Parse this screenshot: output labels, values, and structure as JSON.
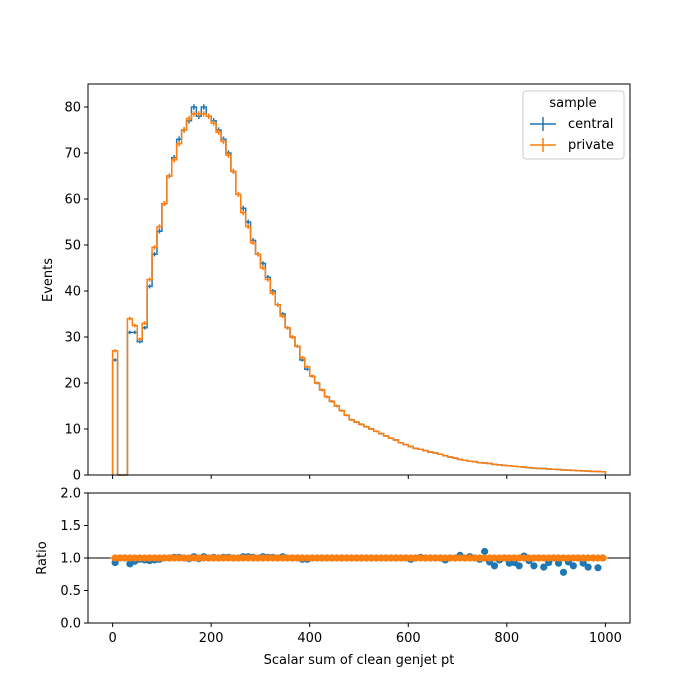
{
  "chart_data": [
    {
      "type": "histogram",
      "ylabel": "Events",
      "xlim": [
        -50,
        1050
      ],
      "ylim": [
        0,
        85
      ],
      "yticks": [
        0,
        10,
        20,
        30,
        40,
        50,
        60,
        70,
        80
      ],
      "legend": {
        "title": "sample",
        "placement": "top-right",
        "entries": [
          "central",
          "private"
        ]
      },
      "bin_edges": [
        0,
        10,
        20,
        30,
        40,
        50,
        60,
        70,
        80,
        90,
        100,
        110,
        120,
        130,
        140,
        150,
        160,
        170,
        180,
        190,
        200,
        210,
        220,
        230,
        240,
        250,
        260,
        270,
        280,
        290,
        300,
        310,
        320,
        330,
        340,
        350,
        360,
        370,
        380,
        390,
        400,
        410,
        420,
        430,
        440,
        450,
        460,
        470,
        480,
        490,
        500,
        510,
        520,
        530,
        540,
        550,
        560,
        570,
        580,
        590,
        600,
        610,
        620,
        630,
        640,
        650,
        660,
        670,
        680,
        690,
        700,
        710,
        720,
        730,
        740,
        750,
        760,
        770,
        780,
        790,
        800,
        810,
        820,
        830,
        840,
        850,
        860,
        870,
        880,
        890,
        900,
        910,
        920,
        930,
        940,
        950,
        960,
        970,
        980,
        990,
        1000
      ],
      "series": [
        {
          "name": "central",
          "color": "#1f77b4",
          "values": [
            25,
            0,
            0,
            31,
            31,
            29,
            32,
            41,
            48,
            53,
            59,
            65,
            69,
            73,
            75,
            77,
            80,
            78,
            80,
            78,
            77,
            75,
            73,
            70,
            66,
            61,
            58,
            55,
            51,
            48,
            46,
            43,
            40,
            37,
            35,
            32,
            30,
            28,
            25,
            23,
            21.5,
            20,
            18.5,
            17,
            16,
            15,
            14,
            13,
            12,
            11.5,
            11,
            10.5,
            10,
            9.5,
            9,
            8.5,
            8,
            7.6,
            7,
            6.6,
            6.2,
            5.8,
            5.6,
            5.3,
            5,
            4.8,
            4.5,
            4.2,
            3.9,
            3.7,
            3.4,
            3.2,
            3.0,
            2.9,
            2.7,
            2.6,
            2.5,
            2.3,
            2.2,
            2.1,
            2.0,
            1.9,
            1.8,
            1.7,
            1.6,
            1.5,
            1.45,
            1.4,
            1.3,
            1.25,
            1.2,
            1.1,
            1.05,
            1.0,
            0.95,
            0.9,
            0.85,
            0.8,
            0.75,
            0.7
          ]
        },
        {
          "name": "private",
          "color": "#ff7f0e",
          "values": [
            27,
            0,
            0,
            34,
            32.5,
            29.5,
            33,
            42.5,
            49.5,
            54,
            59,
            65,
            68.5,
            72,
            75,
            77.5,
            78.5,
            78.5,
            78.5,
            78,
            76.5,
            74.5,
            72.5,
            69.5,
            66,
            61,
            57,
            54,
            50.5,
            48,
            45,
            42.5,
            39.5,
            37,
            34.5,
            32,
            30,
            28,
            25.5,
            23.5,
            21.5,
            20,
            18.5,
            17,
            16,
            15,
            14,
            13,
            12,
            11.5,
            11,
            10.5,
            10,
            9.5,
            9,
            8.5,
            8,
            7.6,
            7,
            6.6,
            6.2,
            5.8,
            5.6,
            5.3,
            5,
            4.8,
            4.5,
            4.2,
            3.9,
            3.7,
            3.4,
            3.2,
            3.0,
            2.9,
            2.7,
            2.6,
            2.5,
            2.3,
            2.2,
            2.1,
            2.0,
            1.9,
            1.8,
            1.7,
            1.6,
            1.5,
            1.45,
            1.4,
            1.3,
            1.25,
            1.2,
            1.1,
            1.05,
            1.0,
            0.95,
            0.9,
            0.85,
            0.8,
            0.75,
            0.7
          ]
        }
      ]
    },
    {
      "type": "scatter",
      "xlabel": "Scalar sum of clean genjet pt",
      "ylabel": "Ratio",
      "xlim": [
        -50,
        1050
      ],
      "ylim": [
        0,
        2.0
      ],
      "xticks": [
        0,
        200,
        400,
        600,
        800,
        1000
      ],
      "yticks": [
        "0.0",
        "0.5",
        "1.0",
        "1.5",
        "2.0"
      ],
      "reference_line": 1.0,
      "x": [
        5,
        15,
        25,
        35,
        45,
        55,
        65,
        75,
        85,
        95,
        105,
        115,
        125,
        135,
        145,
        155,
        165,
        175,
        185,
        195,
        205,
        215,
        225,
        235,
        245,
        255,
        265,
        275,
        285,
        295,
        305,
        315,
        325,
        335,
        345,
        355,
        365,
        375,
        385,
        395,
        405,
        415,
        425,
        435,
        445,
        455,
        465,
        475,
        485,
        495,
        505,
        515,
        525,
        535,
        545,
        555,
        565,
        575,
        585,
        595,
        605,
        615,
        625,
        635,
        645,
        655,
        665,
        675,
        685,
        695,
        705,
        715,
        725,
        735,
        745,
        755,
        765,
        775,
        785,
        795,
        805,
        815,
        825,
        835,
        845,
        855,
        865,
        875,
        885,
        895,
        905,
        915,
        925,
        935,
        945,
        955,
        965,
        975,
        985,
        995
      ],
      "series": [
        {
          "name": "central",
          "color": "#1f77b4",
          "values": [
            0.93,
            1.0,
            1.0,
            0.91,
            0.95,
            0.98,
            0.97,
            0.96,
            0.97,
            0.98,
            1.0,
            1.0,
            1.01,
            1.01,
            1.0,
            0.99,
            1.02,
            0.99,
            1.02,
            1.0,
            1.01,
            1.0,
            1.01,
            1.01,
            1.0,
            1.0,
            1.02,
            1.02,
            1.01,
            1.0,
            1.02,
            1.01,
            1.01,
            1.0,
            1.02,
            1.0,
            1.0,
            1.0,
            0.98,
            0.98,
            1.0,
            1.0,
            1.0,
            1.0,
            1.0,
            1.0,
            1.0,
            1.0,
            1.0,
            1.0,
            1.0,
            1.0,
            1.0,
            1.0,
            1.0,
            1.0,
            1.0,
            1.0,
            1.0,
            1.0,
            0.98,
            1.0,
            1.01,
            1.0,
            1.0,
            1.0,
            1.0,
            0.97,
            1.0,
            1.0,
            1.04,
            1.0,
            1.02,
            1.0,
            0.98,
            1.1,
            0.94,
            0.88,
            0.97,
            1.0,
            0.92,
            0.93,
            0.88,
            1.03,
            0.96,
            0.88,
            1.0,
            0.86,
            0.93,
            1.0,
            0.92,
            0.78,
            0.94,
            0.88,
            1.0,
            0.92,
            0.86,
            1.0,
            0.85,
            1.0
          ]
        },
        {
          "name": "private",
          "color": "#ff7f0e",
          "values": [
            1.0,
            1.0,
            1.0,
            1.0,
            1.0,
            1.0,
            1.0,
            1.0,
            1.0,
            1.0,
            1.0,
            1.0,
            1.0,
            1.0,
            1.0,
            1.0,
            1.0,
            1.0,
            1.0,
            1.0,
            1.0,
            1.0,
            1.0,
            1.0,
            1.0,
            1.0,
            1.0,
            1.0,
            1.0,
            1.0,
            1.0,
            1.0,
            1.0,
            1.0,
            1.0,
            1.0,
            1.0,
            1.0,
            1.0,
            1.0,
            1.0,
            1.0,
            1.0,
            1.0,
            1.0,
            1.0,
            1.0,
            1.0,
            1.0,
            1.0,
            1.0,
            1.0,
            1.0,
            1.0,
            1.0,
            1.0,
            1.0,
            1.0,
            1.0,
            1.0,
            1.0,
            1.0,
            1.0,
            1.0,
            1.0,
            1.0,
            1.0,
            1.0,
            1.0,
            1.0,
            1.0,
            1.0,
            1.0,
            1.0,
            1.0,
            1.0,
            1.0,
            1.0,
            1.0,
            1.0,
            1.0,
            1.0,
            1.0,
            1.0,
            1.0,
            1.0,
            1.0,
            1.0,
            1.0,
            1.0,
            1.0,
            1.0,
            1.0,
            1.0,
            1.0,
            1.0,
            1.0,
            1.0,
            1.0,
            1.0
          ]
        }
      ]
    }
  ]
}
